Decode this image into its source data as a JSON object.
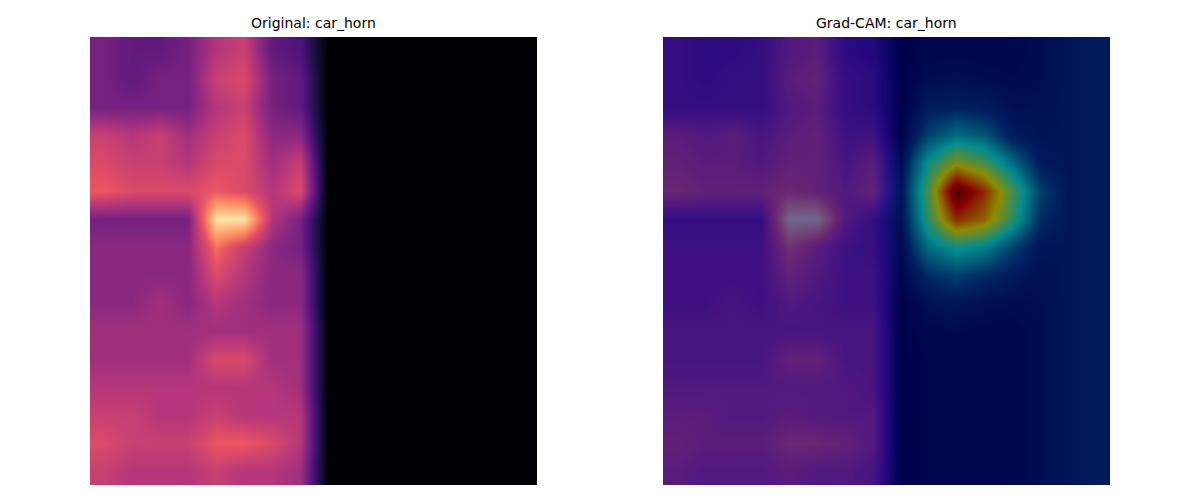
{
  "chart_data": [
    {
      "type": "heatmap",
      "title": "Original: car_horn",
      "color": "magma",
      "zlim": [
        0,
        1
      ],
      "xlim": [
        -0.5,
        15.5
      ],
      "ylim": [
        15.5,
        -0.5
      ],
      "tick_labels": false,
      "z": [
        [
          0.35,
          0.3,
          0.3,
          0.35,
          0.5,
          0.55,
          0.3,
          0.25,
          0,
          0,
          0,
          0,
          0,
          0,
          0,
          0
        ],
        [
          0.35,
          0.3,
          0.35,
          0.35,
          0.55,
          0.6,
          0.35,
          0.3,
          0,
          0,
          0,
          0,
          0,
          0,
          0,
          0
        ],
        [
          0.35,
          0.35,
          0.35,
          0.35,
          0.5,
          0.55,
          0.35,
          0.3,
          0,
          0,
          0,
          0,
          0,
          0,
          0,
          0
        ],
        [
          0.55,
          0.5,
          0.55,
          0.45,
          0.55,
          0.6,
          0.4,
          0.4,
          0,
          0,
          0,
          0,
          0,
          0,
          0,
          0
        ],
        [
          0.6,
          0.55,
          0.55,
          0.5,
          0.6,
          0.6,
          0.45,
          0.55,
          0,
          0,
          0,
          0,
          0,
          0,
          0,
          0
        ],
        [
          0.65,
          0.6,
          0.6,
          0.6,
          0.65,
          0.6,
          0.5,
          0.6,
          0,
          0,
          0,
          0,
          0,
          0,
          0,
          0
        ],
        [
          0.35,
          0.35,
          0.35,
          0.35,
          0.95,
          0.95,
          0.5,
          0.35,
          0,
          0,
          0,
          0,
          0,
          0,
          0,
          0
        ],
        [
          0.4,
          0.4,
          0.4,
          0.4,
          0.7,
          0.55,
          0.4,
          0.35,
          0,
          0,
          0,
          0,
          0,
          0,
          0,
          0
        ],
        [
          0.4,
          0.4,
          0.4,
          0.4,
          0.6,
          0.5,
          0.4,
          0.4,
          0,
          0,
          0,
          0,
          0,
          0,
          0,
          0
        ],
        [
          0.4,
          0.4,
          0.45,
          0.4,
          0.5,
          0.45,
          0.4,
          0.4,
          0,
          0,
          0,
          0,
          0,
          0,
          0,
          0
        ],
        [
          0.45,
          0.45,
          0.45,
          0.45,
          0.45,
          0.45,
          0.45,
          0.45,
          0,
          0,
          0,
          0,
          0,
          0,
          0,
          0
        ],
        [
          0.45,
          0.45,
          0.45,
          0.45,
          0.6,
          0.6,
          0.45,
          0.45,
          0,
          0,
          0,
          0,
          0,
          0,
          0,
          0
        ],
        [
          0.5,
          0.5,
          0.5,
          0.5,
          0.5,
          0.5,
          0.5,
          0.45,
          0,
          0,
          0,
          0,
          0,
          0,
          0,
          0
        ],
        [
          0.55,
          0.55,
          0.5,
          0.5,
          0.55,
          0.5,
          0.5,
          0.5,
          0,
          0,
          0,
          0,
          0,
          0,
          0,
          0
        ],
        [
          0.6,
          0.55,
          0.55,
          0.55,
          0.65,
          0.65,
          0.6,
          0.5,
          0,
          0,
          0,
          0,
          0,
          0,
          0,
          0
        ],
        [
          0.55,
          0.5,
          0.5,
          0.5,
          0.55,
          0.5,
          0.5,
          0.45,
          0,
          0,
          0,
          0,
          0,
          0,
          0,
          0
        ]
      ]
    },
    {
      "type": "heatmap",
      "title": "Grad-CAM: car_horn",
      "zlim": [
        0,
        1
      ],
      "xlim": [
        -0.5,
        15.5
      ],
      "ylim": [
        15.5,
        -0.5
      ],
      "tick_labels": false,
      "series": [
        {
          "color": "magma",
          "z": [
            [
              0.35,
              0.3,
              0.3,
              0.35,
              0.5,
              0.55,
              0.3,
              0.25,
              0,
              0,
              0,
              0,
              0,
              0,
              0,
              0
            ],
            [
              0.35,
              0.3,
              0.35,
              0.35,
              0.55,
              0.6,
              0.35,
              0.3,
              0,
              0,
              0,
              0,
              0,
              0,
              0,
              0
            ],
            [
              0.35,
              0.35,
              0.35,
              0.35,
              0.5,
              0.55,
              0.35,
              0.3,
              0,
              0,
              0,
              0,
              0,
              0,
              0,
              0
            ],
            [
              0.55,
              0.5,
              0.55,
              0.45,
              0.55,
              0.6,
              0.4,
              0.4,
              0,
              0,
              0,
              0,
              0,
              0,
              0,
              0
            ],
            [
              0.6,
              0.55,
              0.55,
              0.5,
              0.6,
              0.6,
              0.45,
              0.55,
              0,
              0,
              0,
              0,
              0,
              0,
              0,
              0
            ],
            [
              0.65,
              0.6,
              0.6,
              0.6,
              0.65,
              0.6,
              0.5,
              0.6,
              0,
              0,
              0,
              0,
              0,
              0,
              0,
              0
            ],
            [
              0.35,
              0.35,
              0.35,
              0.35,
              0.95,
              0.95,
              0.5,
              0.35,
              0,
              0,
              0,
              0,
              0,
              0,
              0,
              0
            ],
            [
              0.4,
              0.4,
              0.4,
              0.4,
              0.7,
              0.55,
              0.4,
              0.35,
              0,
              0,
              0,
              0,
              0,
              0,
              0,
              0
            ],
            [
              0.4,
              0.4,
              0.4,
              0.4,
              0.6,
              0.5,
              0.4,
              0.4,
              0,
              0,
              0,
              0,
              0,
              0,
              0,
              0
            ],
            [
              0.4,
              0.4,
              0.45,
              0.4,
              0.5,
              0.45,
              0.4,
              0.4,
              0,
              0,
              0,
              0,
              0,
              0,
              0,
              0
            ],
            [
              0.45,
              0.45,
              0.45,
              0.45,
              0.45,
              0.45,
              0.45,
              0.45,
              0,
              0,
              0,
              0,
              0,
              0,
              0,
              0
            ],
            [
              0.45,
              0.45,
              0.45,
              0.45,
              0.6,
              0.6,
              0.45,
              0.45,
              0,
              0,
              0,
              0,
              0,
              0,
              0,
              0
            ],
            [
              0.5,
              0.5,
              0.5,
              0.5,
              0.5,
              0.5,
              0.5,
              0.45,
              0,
              0,
              0,
              0,
              0,
              0,
              0,
              0
            ],
            [
              0.55,
              0.55,
              0.5,
              0.5,
              0.55,
              0.5,
              0.5,
              0.5,
              0,
              0,
              0,
              0,
              0,
              0,
              0,
              0
            ],
            [
              0.6,
              0.55,
              0.55,
              0.55,
              0.65,
              0.65,
              0.6,
              0.5,
              0,
              0,
              0,
              0,
              0,
              0,
              0,
              0
            ],
            [
              0.55,
              0.5,
              0.5,
              0.5,
              0.55,
              0.5,
              0.5,
              0.45,
              0,
              0,
              0,
              0,
              0,
              0,
              0,
              0
            ]
          ]
        },
        {
          "color": "jet",
          "z": [
            [
              0,
              0,
              0,
              0,
              0,
              0,
              0,
              0,
              0,
              0.03,
              0.03,
              0.03,
              0.03,
              0.05,
              0.08,
              0.1
            ],
            [
              0,
              0,
              0,
              0,
              0,
              0,
              0,
              0,
              0,
              0.05,
              0.06,
              0.05,
              0.04,
              0.05,
              0.08,
              0.1
            ],
            [
              0,
              0,
              0,
              0,
              0,
              0,
              0,
              0,
              0,
              0.1,
              0.12,
              0.1,
              0.06,
              0.06,
              0.08,
              0.1
            ],
            [
              0,
              0,
              0,
              0,
              0,
              0,
              0,
              0,
              0,
              0.2,
              0.3,
              0.25,
              0.1,
              0.07,
              0.08,
              0.1
            ],
            [
              0,
              0,
              0,
              0,
              0,
              0,
              0,
              0,
              0.05,
              0.4,
              0.6,
              0.5,
              0.3,
              0.1,
              0.08,
              0.1
            ],
            [
              0,
              0,
              0,
              0,
              0,
              0,
              0,
              0,
              0.08,
              0.5,
              1.0,
              0.8,
              0.5,
              0.2,
              0.08,
              0.1
            ],
            [
              0,
              0,
              0,
              0,
              0,
              0,
              0,
              0,
              0.06,
              0.45,
              0.8,
              0.7,
              0.45,
              0.15,
              0.08,
              0.1
            ],
            [
              0,
              0,
              0,
              0,
              0,
              0,
              0,
              0,
              0.04,
              0.3,
              0.4,
              0.35,
              0.2,
              0.08,
              0.08,
              0.1
            ],
            [
              0,
              0,
              0,
              0,
              0,
              0,
              0,
              0,
              0.02,
              0.15,
              0.2,
              0.15,
              0.1,
              0.06,
              0.08,
              0.1
            ],
            [
              0,
              0,
              0,
              0,
              0,
              0,
              0,
              0,
              0,
              0.06,
              0.08,
              0.06,
              0.05,
              0.05,
              0.08,
              0.1
            ],
            [
              0,
              0,
              0,
              0,
              0,
              0,
              0,
              0,
              0,
              0.03,
              0.04,
              0.03,
              0.03,
              0.05,
              0.08,
              0.1
            ],
            [
              0,
              0,
              0,
              0,
              0,
              0,
              0,
              0,
              0,
              0.02,
              0.02,
              0.02,
              0.03,
              0.05,
              0.08,
              0.1
            ],
            [
              0,
              0,
              0,
              0,
              0,
              0,
              0,
              0,
              0,
              0.02,
              0.02,
              0.02,
              0.03,
              0.05,
              0.08,
              0.1
            ],
            [
              0,
              0,
              0,
              0,
              0,
              0,
              0,
              0,
              0,
              0.02,
              0.02,
              0.02,
              0.03,
              0.05,
              0.08,
              0.1
            ],
            [
              0,
              0,
              0,
              0,
              0,
              0,
              0,
              0,
              0,
              0.02,
              0.02,
              0.02,
              0.03,
              0.05,
              0.08,
              0.1
            ],
            [
              0,
              0,
              0,
              0,
              0,
              0,
              0,
              0,
              0,
              0.02,
              0.02,
              0.02,
              0.03,
              0.05,
              0.08,
              0.1
            ]
          ]
        }
      ]
    }
  ]
}
